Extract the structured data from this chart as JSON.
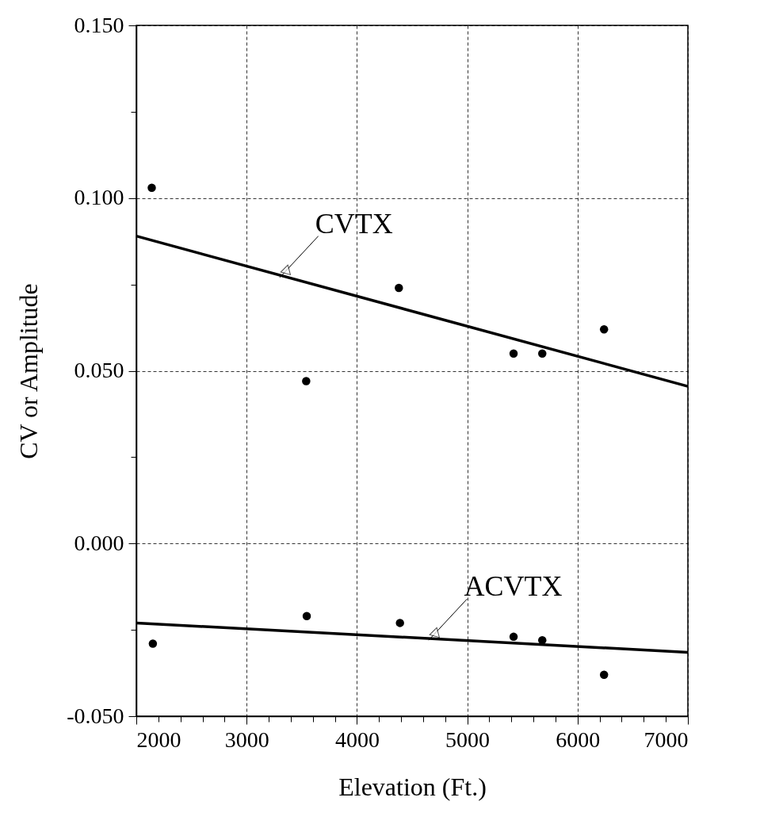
{
  "chart_data": {
    "type": "scatter",
    "xlabel": "Elevation (Ft.)",
    "ylabel": "CV or Amplitude",
    "xlim": [
      2000,
      7000
    ],
    "ylim": [
      -0.05,
      0.15
    ],
    "xticks": [
      2000,
      {
        "value": 2200,
        "label": null
      },
      {
        "value": 2400,
        "label": null
      },
      {
        "value": 2600,
        "label": null
      },
      {
        "value": 2800,
        "label": null
      },
      3000,
      {
        "value": 3200,
        "label": null
      },
      {
        "value": 3400,
        "label": null
      },
      {
        "value": 3600,
        "label": null
      },
      {
        "value": 3800,
        "label": null
      },
      4000,
      {
        "value": 4200,
        "label": null
      },
      {
        "value": 4400,
        "label": null
      },
      {
        "value": 4600,
        "label": null
      },
      {
        "value": 4800,
        "label": null
      },
      5000,
      {
        "value": 5200,
        "label": null
      },
      {
        "value": 5400,
        "label": null
      },
      {
        "value": 5600,
        "label": null
      },
      {
        "value": 5800,
        "label": null
      },
      6000,
      {
        "value": 6200,
        "label": null
      },
      {
        "value": 6400,
        "label": null
      },
      {
        "value": 6600,
        "label": null
      },
      {
        "value": 6800,
        "label": null
      },
      7000
    ],
    "yticks": [
      {
        "value": -0.05,
        "label": "-0.050"
      },
      {
        "value": -0.025,
        "label": null
      },
      {
        "value": 0,
        "label": "0.000"
      },
      {
        "value": 0.025,
        "label": null
      },
      {
        "value": 0.05,
        "label": "0.050"
      },
      {
        "value": 0.075,
        "label": null
      },
      {
        "value": 0.1,
        "label": "0.100"
      },
      {
        "value": 0.125,
        "label": null
      },
      {
        "value": 0.15,
        "label": "0.150"
      }
    ],
    "grid": true,
    "marker": "circle",
    "series": [
      {
        "color": "#000000",
        "x": [
          2140,
          3540,
          4380,
          5420,
          5680,
          6240
        ],
        "values": [
          0.103,
          0.047,
          0.074,
          0.055,
          0.055,
          0.062
        ]
      },
      {
        "color": "#000000",
        "x": [
          2150,
          3545,
          4390,
          5420,
          5680,
          6240
        ],
        "values": [
          -0.029,
          -0.021,
          -0.023,
          -0.027,
          -0.028,
          -0.038
        ]
      },
      {
        "type": "line",
        "marker": "none",
        "color": "#000000",
        "x": [
          2000,
          7000
        ],
        "values": [
          0.089,
          0.0455
        ]
      },
      {
        "type": "line",
        "marker": "none",
        "color": "#000000",
        "x": [
          2000,
          7000
        ],
        "values": [
          -0.023,
          -0.0315
        ]
      }
    ],
    "annotations": [
      {
        "text": "CVTX",
        "x": 3300,
        "y": 0.077
      },
      {
        "text": "ACVTX",
        "x": 4650,
        "y": -0.028
      }
    ]
  }
}
